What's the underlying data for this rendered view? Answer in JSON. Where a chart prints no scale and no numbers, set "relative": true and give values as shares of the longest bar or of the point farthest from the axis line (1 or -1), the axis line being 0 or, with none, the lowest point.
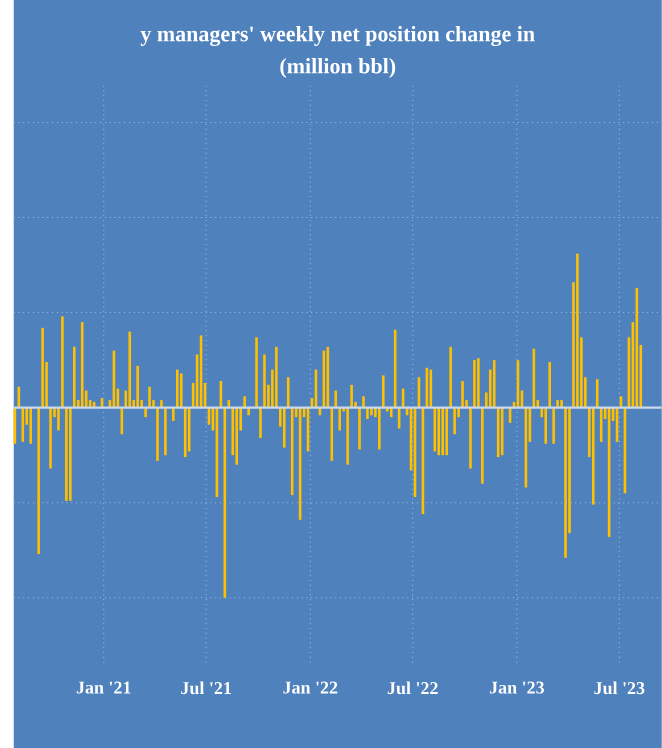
{
  "chart_data": {
    "type": "bar",
    "title": "y managers' weekly net position change in",
    "subtitle": "(million bbl)",
    "relative": true,
    "color": "#ffc000",
    "grid": true,
    "x": [
      "2020-07-28",
      "2020-08-04",
      "2020-08-11",
      "2020-08-18",
      "2020-08-25",
      "2020-09-01",
      "2020-09-08",
      "2020-09-15",
      "2020-09-22",
      "2020-09-29",
      "2020-10-06",
      "2020-10-13",
      "2020-10-20",
      "2020-10-27",
      "2020-11-03",
      "2020-11-10",
      "2020-11-17",
      "2020-11-24",
      "2020-12-01",
      "2020-12-08",
      "2020-12-15",
      "2020-12-22",
      "2020-12-29",
      "2021-01-05",
      "2021-01-12",
      "2021-01-19",
      "2021-01-26",
      "2021-02-02",
      "2021-02-09",
      "2021-02-16",
      "2021-02-23",
      "2021-03-02",
      "2021-03-09",
      "2021-03-16",
      "2021-03-23",
      "2021-03-30",
      "2021-04-06",
      "2021-04-13",
      "2021-04-20",
      "2021-04-27",
      "2021-05-04",
      "2021-05-11",
      "2021-05-18",
      "2021-05-25",
      "2021-06-01",
      "2021-06-08",
      "2021-06-15",
      "2021-06-22",
      "2021-06-29",
      "2021-07-06",
      "2021-07-13",
      "2021-07-20",
      "2021-07-27",
      "2021-08-03",
      "2021-08-10",
      "2021-08-17",
      "2021-08-24",
      "2021-08-31",
      "2021-09-07",
      "2021-09-14",
      "2021-09-21",
      "2021-09-28",
      "2021-10-05",
      "2021-10-12",
      "2021-10-19",
      "2021-10-26",
      "2021-11-02",
      "2021-11-09",
      "2021-11-16",
      "2021-11-23",
      "2021-11-30",
      "2021-12-07",
      "2021-12-14",
      "2021-12-21",
      "2021-12-28",
      "2022-01-04",
      "2022-01-11",
      "2022-01-18",
      "2022-01-25",
      "2022-02-01",
      "2022-02-08",
      "2022-02-15",
      "2022-02-22",
      "2022-03-01",
      "2022-03-08",
      "2022-03-15",
      "2022-03-22",
      "2022-03-29",
      "2022-04-05",
      "2022-04-12",
      "2022-04-19",
      "2022-04-26",
      "2022-05-03",
      "2022-05-10",
      "2022-05-17",
      "2022-05-24",
      "2022-05-31",
      "2022-06-07",
      "2022-06-14",
      "2022-06-21",
      "2022-06-28",
      "2022-07-05",
      "2022-07-12",
      "2022-07-19",
      "2022-07-26",
      "2022-08-02",
      "2022-08-09",
      "2022-08-16",
      "2022-08-23",
      "2022-08-30",
      "2022-09-06",
      "2022-09-13",
      "2022-09-20",
      "2022-09-27",
      "2022-10-04",
      "2022-10-11",
      "2022-10-18",
      "2022-10-25",
      "2022-11-01",
      "2022-11-08",
      "2022-11-15",
      "2022-11-22",
      "2022-11-29",
      "2022-12-06",
      "2022-12-13",
      "2022-12-20",
      "2022-12-27",
      "2023-01-03",
      "2023-01-10",
      "2023-01-17",
      "2023-01-24",
      "2023-01-31",
      "2023-02-07",
      "2023-02-14",
      "2023-02-21",
      "2023-02-28",
      "2023-03-07",
      "2023-03-14",
      "2023-03-21",
      "2023-03-28",
      "2023-04-04",
      "2023-04-11",
      "2023-04-18",
      "2023-04-25",
      "2023-05-02",
      "2023-05-09",
      "2023-05-16",
      "2023-05-23",
      "2023-05-30",
      "2023-06-06",
      "2023-06-13",
      "2023-06-20",
      "2023-06-27",
      "2023-07-04",
      "2023-07-11",
      "2023-07-18",
      "2023-07-25",
      "2023-08-01",
      "2023-08-08"
    ],
    "values": [
      -0.19,
      0.11,
      -0.18,
      -0.09,
      -0.19,
      null,
      -0.77,
      0.42,
      0.24,
      -0.32,
      -0.05,
      -0.12,
      0.48,
      -0.49,
      -0.49,
      0.32,
      0.04,
      0.45,
      0.09,
      0.04,
      0.03,
      null,
      0.05,
      null,
      0.04,
      0.3,
      0.1,
      -0.14,
      0.09,
      0.4,
      0.04,
      0.22,
      0.04,
      -0.05,
      0.11,
      0.04,
      -0.28,
      0.04,
      -0.25,
      null,
      -0.07,
      0.2,
      0.18,
      -0.26,
      -0.23,
      0.13,
      0.28,
      0.38,
      0.13,
      -0.09,
      -0.12,
      -0.47,
      0.14,
      -1,
      0.04,
      -0.25,
      -0.3,
      -0.12,
      0.06,
      -0.04,
      null,
      0.37,
      -0.16,
      0.28,
      0.12,
      0.2,
      0.32,
      -0.1,
      -0.21,
      0.16,
      -0.46,
      -0.05,
      -0.59,
      -0.05,
      -0.23,
      0.05,
      0.2,
      -0.04,
      0.3,
      0.32,
      -0.28,
      0.09,
      -0.12,
      -0.02,
      -0.3,
      0.12,
      0.03,
      -0.22,
      0.06,
      -0.06,
      -0.04,
      -0.05,
      -0.22,
      0.17,
      -0.02,
      -0.05,
      0.41,
      -0.11,
      0.1,
      -0.04,
      -0.33,
      -0.47,
      0.16,
      -0.56,
      0.21,
      0.2,
      -0.23,
      -0.25,
      -0.25,
      -0.25,
      0.32,
      -0.14,
      -0.05,
      0.14,
      0.04,
      -0.32,
      0.25,
      0.26,
      -0.4,
      0.08,
      0.2,
      0.25,
      -0.26,
      -0.25,
      null,
      -0.08,
      0.03,
      0.25,
      0.09,
      -0.42,
      -0.18,
      0.31,
      0.04,
      -0.05,
      -0.19,
      0.24,
      -0.19,
      0.04,
      0.04,
      -0.79,
      -0.66,
      0.66,
      0.81,
      0.37,
      0.16,
      -0.26,
      -0.51,
      0.15,
      -0.18,
      -0.06,
      -0.68,
      -0.07,
      -0.18,
      0.06,
      -0.45,
      0.37,
      0.45,
      0.63,
      0.33
    ],
    "xlim": [
      "2020-07-26",
      "2023-09-14"
    ],
    "xticks": [
      {
        "value": "2021-01-01",
        "label": "Jan '21"
      },
      {
        "value": "2021-07-01",
        "label": "Jul '21"
      },
      {
        "value": "2022-01-01",
        "label": "Jan '22"
      },
      {
        "value": "2022-07-01",
        "label": "Jul '22"
      },
      {
        "value": "2023-01-01",
        "label": "Jan '23"
      },
      {
        "value": "2023-07-01",
        "label": "Jul '23"
      }
    ]
  }
}
